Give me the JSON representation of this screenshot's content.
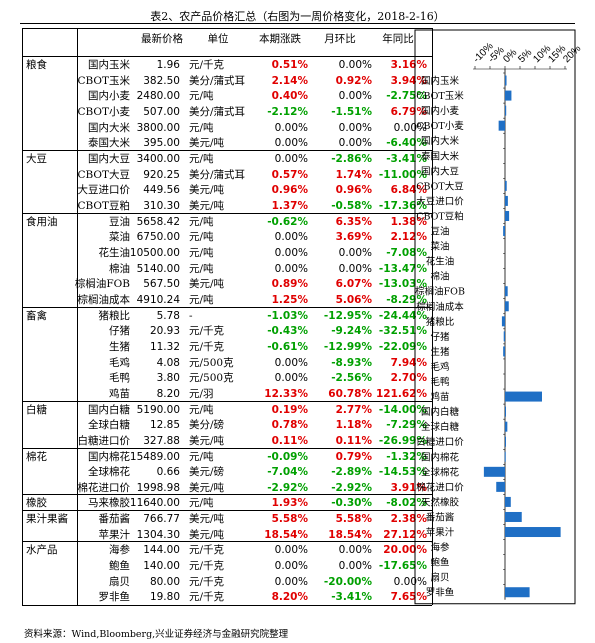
{
  "title": "表2、农产品价格汇总（右图为一周价格变化，2018-2-16）",
  "source": "资料来源：Wind,Bloomberg,兴业证券经济与金融研究院整理",
  "headers": {
    "price": "最新价格",
    "unit": "单位",
    "week": "本期涨跌",
    "mom": "月环比",
    "yoy": "年同比"
  },
  "colors": {
    "up": "#e00000",
    "down": "#00a000",
    "bar": "#1f6fc5"
  },
  "groups": [
    {
      "name": "粮食",
      "rows": [
        {
          "name": "国内玉米",
          "price": "1.96",
          "unit": "元/千克",
          "week": "0.51%",
          "mom": "0.00%",
          "yoy": "3.16%"
        },
        {
          "name": "CBOT玉米",
          "price": "382.50",
          "unit": "美分/蒲式耳",
          "week": "2.14%",
          "mom": "0.92%",
          "yoy": "3.94%"
        },
        {
          "name": "国内小麦",
          "price": "2480.00",
          "unit": "元/吨",
          "week": "0.40%",
          "mom": "0.00%",
          "yoy": "-2.75%"
        },
        {
          "name": "CBOT小麦",
          "price": "507.00",
          "unit": "美分/蒲式耳",
          "week": "-2.12%",
          "mom": "-1.51%",
          "yoy": "6.79%"
        },
        {
          "name": "国内大米",
          "price": "3800.00",
          "unit": "元/吨",
          "week": "0.00%",
          "mom": "0.00%",
          "yoy": "0.00%"
        },
        {
          "name": "泰国大米",
          "price": "395.00",
          "unit": "美元/吨",
          "week": "0.00%",
          "mom": "0.00%",
          "yoy": "-6.40%"
        }
      ]
    },
    {
      "name": "大豆",
      "rows": [
        {
          "name": "国内大豆",
          "price": "3400.00",
          "unit": "元/吨",
          "week": "0.00%",
          "mom": "-2.86%",
          "yoy": "-3.41%"
        },
        {
          "name": "CBOT大豆",
          "price": "920.25",
          "unit": "美分/蒲式耳",
          "week": "0.57%",
          "mom": "1.74%",
          "yoy": "-11.00%"
        },
        {
          "name": "大豆进口价",
          "price": "449.56",
          "unit": "美元/吨",
          "week": "0.96%",
          "mom": "0.96%",
          "yoy": "6.84%"
        },
        {
          "name": "CBOT豆粕",
          "price": "310.30",
          "unit": "美元/吨",
          "week": "1.37%",
          "mom": "-0.58%",
          "yoy": "-17.36%"
        }
      ]
    },
    {
      "name": "食用油",
      "rows": [
        {
          "name": "豆油",
          "price": "5658.42",
          "unit": "元/吨",
          "week": "-0.62%",
          "mom": "6.35%",
          "yoy": "1.38%"
        },
        {
          "name": "菜油",
          "price": "6750.00",
          "unit": "元/吨",
          "week": "0.00%",
          "mom": "3.69%",
          "yoy": "2.12%"
        },
        {
          "name": "花生油",
          "price": "10500.00",
          "unit": "元/吨",
          "week": "0.00%",
          "mom": "0.00%",
          "yoy": "-7.08%"
        },
        {
          "name": "棉油",
          "price": "5140.00",
          "unit": "元/吨",
          "week": "0.00%",
          "mom": "0.00%",
          "yoy": "-13.47%"
        },
        {
          "name": "棕榈油FOB",
          "price": "567.50",
          "unit": "美元/吨",
          "week": "0.89%",
          "mom": "6.07%",
          "yoy": "-13.03%"
        },
        {
          "name": "棕榈油成本",
          "price": "4910.24",
          "unit": "元/吨",
          "week": "1.25%",
          "mom": "5.06%",
          "yoy": "-8.29%"
        }
      ]
    },
    {
      "name": "畜禽",
      "rows": [
        {
          "name": "猪粮比",
          "price": "5.78",
          "unit": "-",
          "week": "-1.03%",
          "mom": "-12.95%",
          "yoy": "-24.44%"
        },
        {
          "name": "仔猪",
          "price": "20.93",
          "unit": "元/千克",
          "week": "-0.43%",
          "mom": "-9.24%",
          "yoy": "-32.51%"
        },
        {
          "name": "生猪",
          "price": "11.32",
          "unit": "元/千克",
          "week": "-0.61%",
          "mom": "-12.99%",
          "yoy": "-22.09%"
        },
        {
          "name": "毛鸡",
          "price": "4.08",
          "unit": "元/500克",
          "week": "0.00%",
          "mom": "-8.93%",
          "yoy": "7.94%"
        },
        {
          "name": "毛鸭",
          "price": "3.80",
          "unit": "元/500克",
          "week": "0.00%",
          "mom": "-2.56%",
          "yoy": "2.70%"
        },
        {
          "name": "鸡苗",
          "price": "8.20",
          "unit": "元/羽",
          "week": "12.33%",
          "mom": "60.78%",
          "yoy": "121.62%"
        }
      ]
    },
    {
      "name": "白糖",
      "rows": [
        {
          "name": "国内白糖",
          "price": "5190.00",
          "unit": "元/吨",
          "week": "0.19%",
          "mom": "2.77%",
          "yoy": "-14.00%"
        },
        {
          "name": "全球白糖",
          "price": "12.85",
          "unit": "美分/磅",
          "week": "0.78%",
          "mom": "1.18%",
          "yoy": "-7.29%"
        },
        {
          "name": "白糖进口价",
          "price": "327.88",
          "unit": "美元/吨",
          "week": "0.11%",
          "mom": "0.11%",
          "yoy": "-26.99%"
        }
      ]
    },
    {
      "name": "棉花",
      "rows": [
        {
          "name": "国内棉花",
          "price": "15489.00",
          "unit": "元/吨",
          "week": "-0.09%",
          "mom": "0.79%",
          "yoy": "-1.32%"
        },
        {
          "name": "全球棉花",
          "price": "0.66",
          "unit": "美元/磅",
          "week": "-7.04%",
          "mom": "-2.89%",
          "yoy": "-14.53%"
        },
        {
          "name": "棉花进口价",
          "price": "1998.98",
          "unit": "美元/吨",
          "week": "-2.92%",
          "mom": "-2.92%",
          "yoy": "3.91%"
        }
      ]
    },
    {
      "name": "橡胶",
      "rows": [
        {
          "name": "马来橡胶",
          "price": "11640.00",
          "unit": "元/吨",
          "week": "1.93%",
          "mom": "-0.30%",
          "yoy": "-8.02%"
        }
      ]
    },
    {
      "name": "果汁果酱",
      "rows": [
        {
          "name": "番茄酱",
          "price": "766.77",
          "unit": "美元/吨",
          "week": "5.58%",
          "mom": "5.58%",
          "yoy": "2.38%"
        },
        {
          "name": "苹果汁",
          "price": "1304.30",
          "unit": "美元/吨",
          "week": "18.54%",
          "mom": "18.54%",
          "yoy": "27.12%"
        }
      ]
    },
    {
      "name": "水产品",
      "rows": [
        {
          "name": "海参",
          "price": "144.00",
          "unit": "元/千克",
          "week": "0.00%",
          "mom": "0.00%",
          "yoy": "20.00%"
        },
        {
          "name": "鲍鱼",
          "price": "140.00",
          "unit": "元/千克",
          "week": "0.00%",
          "mom": "0.00%",
          "yoy": "-17.65%"
        },
        {
          "name": "扇贝",
          "price": "80.00",
          "unit": "元/千克",
          "week": "0.00%",
          "mom": "-20.00%",
          "yoy": "0.00%"
        },
        {
          "name": "罗非鱼",
          "price": "19.80",
          "unit": "元/千克",
          "week": "8.20%",
          "mom": "-3.41%",
          "yoy": "7.65%"
        }
      ]
    }
  ],
  "chart_data": {
    "type": "bar",
    "orientation": "horizontal",
    "x_ticks": [
      "-10%",
      "-5%",
      "0%",
      "5%",
      "10%",
      "15%",
      "20%"
    ],
    "xlim": [
      -10,
      20
    ],
    "categories": [
      "国内玉米",
      "CBOT玉米",
      "国内小麦",
      "CBOT小麦",
      "国内大米",
      "泰国大米",
      "国内大豆",
      "CBOT大豆",
      "大豆进口价",
      "CBOT豆粕",
      "豆油",
      "菜油",
      "花生油",
      "棉油",
      "棕榈油FOB",
      "棕榈油成本",
      "猪粮比",
      "仔猪",
      "生猪",
      "毛鸡",
      "毛鸭",
      "鸡苗",
      "国内白糖",
      "全球白糖",
      "白糖进口价",
      "国内棉花",
      "全球棉花",
      "棉花进口价",
      "天然橡胶",
      "番茄酱",
      "苹果汁",
      "海参",
      "鲍鱼",
      "扇贝",
      "罗非鱼"
    ],
    "values": [
      0.51,
      2.14,
      0.4,
      -2.12,
      0.0,
      0.0,
      0.0,
      0.57,
      0.96,
      1.37,
      -0.62,
      0.0,
      0.0,
      0.0,
      0.89,
      1.25,
      -1.03,
      -0.43,
      -0.61,
      0.0,
      0.0,
      12.33,
      0.19,
      0.78,
      0.11,
      -0.09,
      -7.04,
      -2.92,
      1.93,
      5.58,
      18.54,
      0.0,
      0.0,
      0.0,
      8.2
    ]
  }
}
